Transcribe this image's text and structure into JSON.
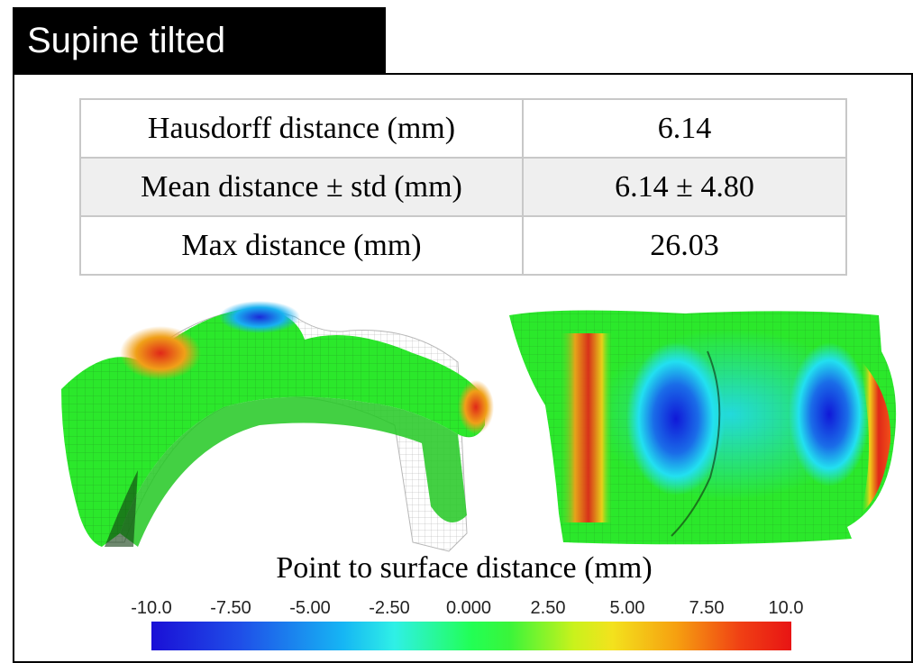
{
  "title": "Supine tilted",
  "metrics": [
    {
      "label": "Hausdorff distance (mm)",
      "value": "6.14"
    },
    {
      "label": "Mean distance ±  std (mm)",
      "value": "6.14 ± 4.80"
    },
    {
      "label": "Max distance (mm)",
      "value": "26.03"
    }
  ],
  "colorbar": {
    "title": "Point to surface distance (mm)",
    "ticks": [
      "-10.0",
      "-7.50",
      "-5.00",
      "-2.50",
      "0.000",
      "2.50",
      "5.00",
      "7.50",
      "10.0"
    ],
    "colors": [
      "#1a0fd6",
      "#16b6f4",
      "#22ff55",
      "#f3e21d",
      "#e81414"
    ]
  }
}
